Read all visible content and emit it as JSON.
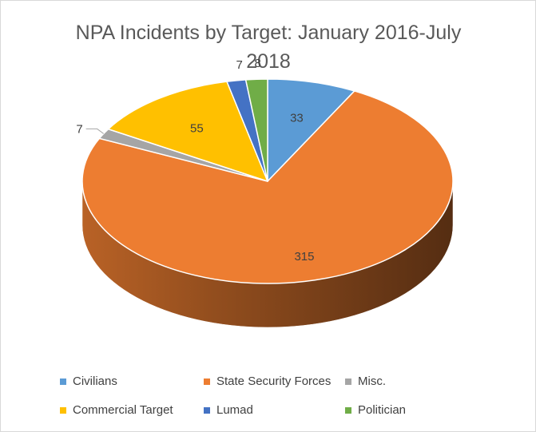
{
  "chart_data": {
    "type": "pie",
    "title": "NPA Incidents by Target: January 2016-July 2018",
    "title_lines": [
      "NPA Incidents by Target: January 2016-July",
      "2018"
    ],
    "style": "3d",
    "legend_position": "bottom",
    "slices": [
      {
        "label": "Civilians",
        "value": 33,
        "color": "#5B9BD5"
      },
      {
        "label": "State Security Forces",
        "value": 315,
        "color": "#ED7D31"
      },
      {
        "label": "Misc.",
        "value": 7,
        "color": "#A5A5A5"
      },
      {
        "label": "Commercial Target",
        "value": 55,
        "color": "#FFC000"
      },
      {
        "label": "Lumad",
        "value": 7,
        "color": "#4472C4"
      },
      {
        "label": "Politician",
        "value": 8,
        "color": "#70AD47"
      }
    ]
  }
}
